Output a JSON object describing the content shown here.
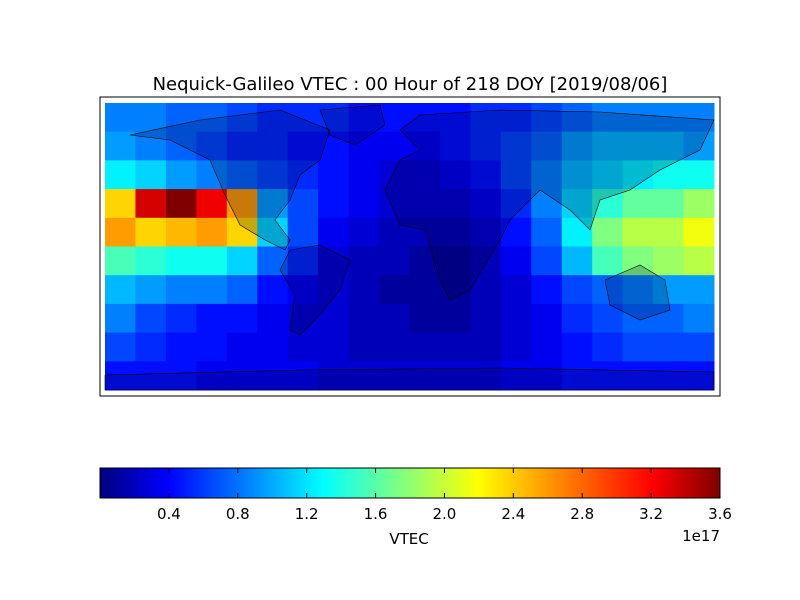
{
  "chart_data": {
    "type": "heatmap",
    "title": "Nequick-Galileo VTEC : 00 Hour of 218 DOY [2019/08/06]",
    "colormap": "jet",
    "xlim": [
      -180,
      180
    ],
    "ylim": [
      90,
      -90
    ],
    "values": [
      [
        0.9,
        0.9,
        0.8,
        0.8,
        0.7,
        0.6,
        0.6,
        0.6,
        0.5,
        0.5,
        0.5,
        0.5,
        0.6,
        0.6,
        0.7,
        0.8,
        0.9,
        0.9,
        0.9,
        0.9
      ],
      [
        1.0,
        0.9,
        0.8,
        0.7,
        0.6,
        0.6,
        0.5,
        0.5,
        0.4,
        0.4,
        0.4,
        0.5,
        0.6,
        0.7,
        0.8,
        1.0,
        1.1,
        1.1,
        1.1,
        1.0
      ],
      [
        1.3,
        1.2,
        1.0,
        0.9,
        0.8,
        0.7,
        0.6,
        0.5,
        0.4,
        0.3,
        0.3,
        0.4,
        0.5,
        0.7,
        0.9,
        1.1,
        1.2,
        1.3,
        1.4,
        1.4
      ],
      [
        2.4,
        3.3,
        3.6,
        3.2,
        2.6,
        1.0,
        0.7,
        0.5,
        0.4,
        0.3,
        0.3,
        0.3,
        0.4,
        0.6,
        0.9,
        1.2,
        1.5,
        1.7,
        1.7,
        1.9
      ],
      [
        2.6,
        2.4,
        2.5,
        2.6,
        2.4,
        1.2,
        0.7,
        0.4,
        0.3,
        0.2,
        0.2,
        0.2,
        0.3,
        0.5,
        0.8,
        1.3,
        1.8,
        2.0,
        2.0,
        2.2
      ],
      [
        1.6,
        1.5,
        1.4,
        1.4,
        1.2,
        0.8,
        0.6,
        0.3,
        0.2,
        0.2,
        0.1,
        0.1,
        0.2,
        0.4,
        0.7,
        1.1,
        1.6,
        1.8,
        1.9,
        2.0
      ],
      [
        1.1,
        1.0,
        0.9,
        0.9,
        0.8,
        0.5,
        0.4,
        0.3,
        0.2,
        0.1,
        0.1,
        0.1,
        0.2,
        0.3,
        0.5,
        0.7,
        0.8,
        0.9,
        1.0,
        1.0
      ],
      [
        0.9,
        0.7,
        0.6,
        0.5,
        0.5,
        0.4,
        0.3,
        0.3,
        0.2,
        0.2,
        0.1,
        0.1,
        0.2,
        0.3,
        0.4,
        0.6,
        0.7,
        0.8,
        0.8,
        0.9
      ],
      [
        0.7,
        0.6,
        0.5,
        0.5,
        0.4,
        0.4,
        0.3,
        0.3,
        0.2,
        0.2,
        0.2,
        0.2,
        0.2,
        0.3,
        0.4,
        0.5,
        0.6,
        0.7,
        0.7,
        0.7
      ],
      [
        0.5,
        0.5,
        0.5,
        0.4,
        0.4,
        0.4,
        0.4,
        0.3,
        0.3,
        0.3,
        0.3,
        0.3,
        0.3,
        0.4,
        0.4,
        0.5,
        0.5,
        0.5,
        0.5,
        0.5
      ]
    ],
    "colorbar": {
      "label": "VTEC",
      "offset_label": "1e17",
      "clim": [
        0,
        3.6
      ],
      "ticks": [
        0.4,
        0.8,
        1.2,
        1.6,
        {
          "value": 2,
          "label": "2.0"
        },
        2.4,
        2.8,
        3.2,
        3.6
      ]
    }
  }
}
